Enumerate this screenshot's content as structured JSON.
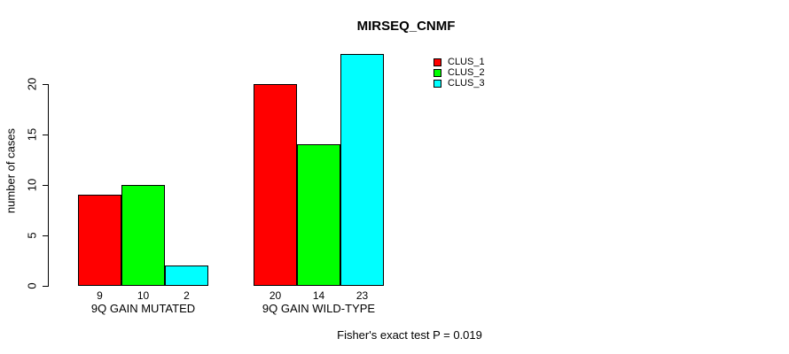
{
  "title": "MIRSEQ_CNMF",
  "footer": "Fisher's exact test P = 0.019",
  "accent_colors": {
    "clus1": "#FF0000",
    "clus2": "#00FF00",
    "clus3": "#00FFFF"
  },
  "chart_data": {
    "type": "bar",
    "title": "MIRSEQ_CNMF",
    "ylabel": "number of cases",
    "xlabel": "",
    "categories": [
      "9Q GAIN MUTATED",
      "9Q GAIN WILD-TYPE"
    ],
    "series": [
      {
        "name": "CLUS_1",
        "color": "#FF0000",
        "values": [
          9,
          20
        ]
      },
      {
        "name": "CLUS_2",
        "color": "#00FF00",
        "values": [
          10,
          14
        ]
      },
      {
        "name": "CLUS_3",
        "color": "#00FFFF",
        "values": [
          2,
          23
        ]
      }
    ],
    "bar_value_labels": [
      [
        "9",
        "10",
        "2"
      ],
      [
        "20",
        "14",
        "23"
      ]
    ],
    "yticks": [
      0,
      5,
      10,
      15,
      20
    ],
    "ylim": [
      0,
      23
    ],
    "grid": false,
    "legend_position": "top-right",
    "legend_entries": [
      "CLUS_1",
      "CLUS_2",
      "CLUS_3"
    ],
    "annotation": "Fisher's exact test P = 0.019"
  }
}
